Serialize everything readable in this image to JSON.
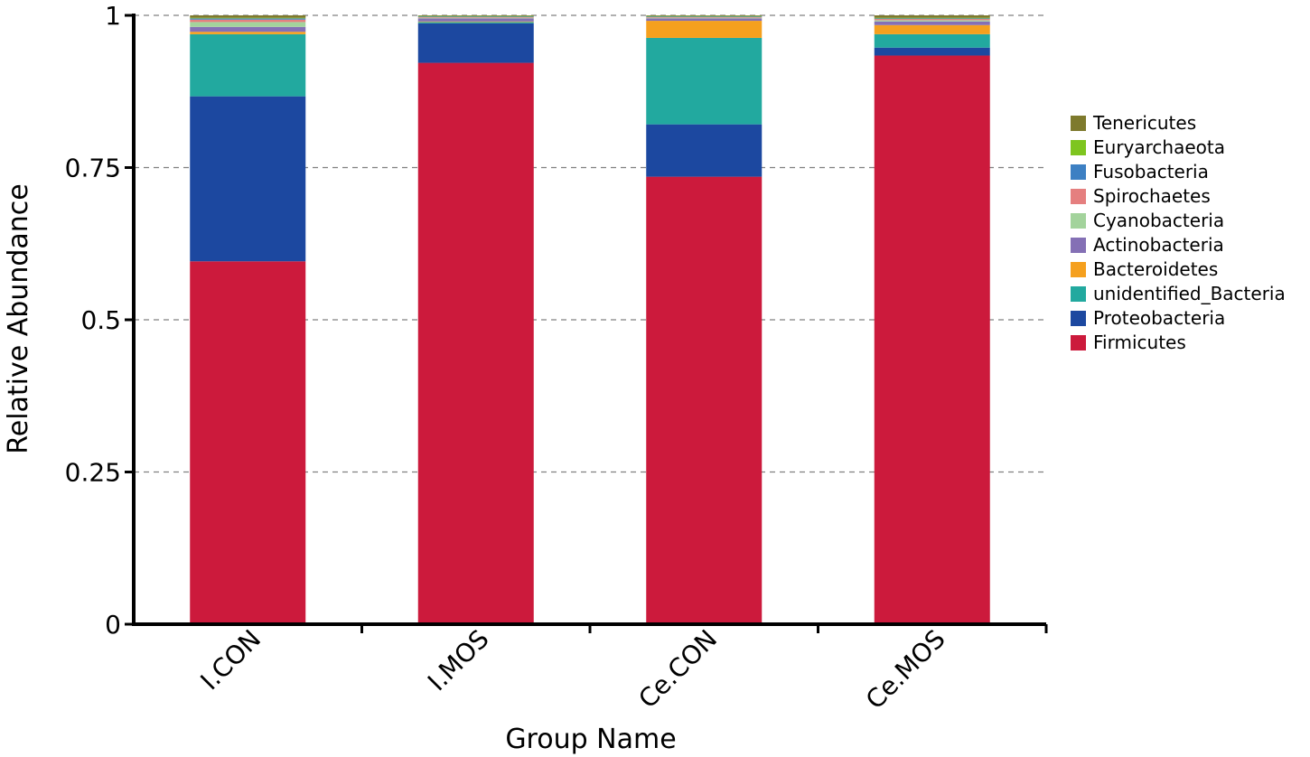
{
  "chart_data": {
    "type": "bar",
    "stacked": true,
    "xlabel": "Group Name",
    "ylabel": "Relative Abundance",
    "ylim": [
      0,
      1
    ],
    "yticks": [
      0,
      0.25,
      0.5,
      0.75,
      1
    ],
    "ytick_labels": [
      "0",
      "0.25",
      "0.5",
      "0.75",
      "1"
    ],
    "grid": "horizontal dashed",
    "legend_position": "right",
    "categories": [
      "I.CON",
      "I.MOS",
      "Ce.CON",
      "Ce.MOS"
    ],
    "series": [
      {
        "name": "Firmicutes",
        "color": "#cc1a3c",
        "values": [
          0.596,
          0.922,
          0.735,
          0.934
        ]
      },
      {
        "name": "Proteobacteria",
        "color": "#1c48a0",
        "values": [
          0.271,
          0.065,
          0.086,
          0.013
        ]
      },
      {
        "name": "unidentified_Bacteria",
        "color": "#22a99f",
        "values": [
          0.102,
          0.002,
          0.142,
          0.022
        ]
      },
      {
        "name": "Bacteroidetes",
        "color": "#f5a01e",
        "values": [
          0.004,
          0.001,
          0.028,
          0.015
        ]
      },
      {
        "name": "Actinobacteria",
        "color": "#8470b5",
        "values": [
          0.008,
          0.005,
          0.004,
          0.006
        ]
      },
      {
        "name": "Cyanobacteria",
        "color": "#a3d39c",
        "values": [
          0.008,
          0.001,
          0.001,
          0.002
        ]
      },
      {
        "name": "Spirochaetes",
        "color": "#e57f7f",
        "values": [
          0.004,
          0.001,
          0.001,
          0.002
        ]
      },
      {
        "name": "Fusobacteria",
        "color": "#3d80c3",
        "values": [
          0.002,
          0.001,
          0.001,
          0.001
        ]
      },
      {
        "name": "Euryarchaeota",
        "color": "#7ec51f",
        "values": [
          0.001,
          0.001,
          0.001,
          0.001
        ]
      },
      {
        "name": "Tenericutes",
        "color": "#7e7a2d",
        "values": [
          0.004,
          0.001,
          0.001,
          0.004
        ]
      }
    ],
    "legend_order": [
      "Tenericutes",
      "Euryarchaeota",
      "Fusobacteria",
      "Spirochaetes",
      "Cyanobacteria",
      "Actinobacteria",
      "Bacteroidetes",
      "unidentified_Bacteria",
      "Proteobacteria",
      "Firmicutes"
    ]
  }
}
